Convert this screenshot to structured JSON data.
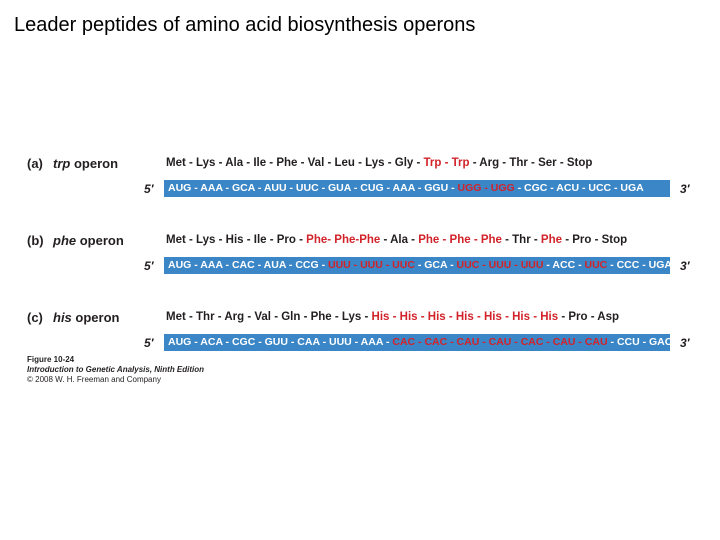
{
  "slide": {
    "title": "Leader peptides of amino acid biosynthesis operons"
  },
  "panels": [
    {
      "letter": "(a)",
      "gene": "trp",
      "label_suffix": " operon",
      "peptide": [
        "Met - Lys - Ala - Ile - Phe - Val - Leu - Lys - Gly - ",
        "Trp - Trp",
        " - Arg - Thr - Ser - Stop"
      ],
      "mrna": [
        "AUG - AAA - GCA - AUU - UUC - GUA - CUG - AAA - GGU - ",
        "UGG - UGG",
        " - CGC - ACU - UCC - UGA"
      ],
      "end5": "5′",
      "end3": "3′"
    },
    {
      "letter": "(b)",
      "gene": "phe",
      "label_suffix": " operon",
      "peptide": [
        "Met - Lys - His  - Ile - Pro - ",
        "Phe- Phe-Phe",
        " - Ala - ",
        "Phe - Phe - Phe",
        " - Thr - ",
        "Phe",
        " - Pro - Stop"
      ],
      "mrna": [
        "AUG - AAA - CAC - AUA - CCG - ",
        "UUU - UUU - UUC",
        " - GCA - ",
        "UUC - UUU - UUU",
        " - ACC - ",
        "UUC",
        " - CCC - UGA"
      ],
      "end5": "5′",
      "end3": "3′"
    },
    {
      "letter": "(c)",
      "gene": "his",
      "label_suffix": " operon",
      "peptide": [
        "Met - Thr - Arg - Val - Gln - Phe - Lys - ",
        "His - His - His - His - His - His - His",
        " - Pro - Asp"
      ],
      "mrna": [
        "AUG - ACA - CGC - GUU - CAA - UUU - AAA - ",
        "CAC - CAC - CAU - CAU - CAC - CAU - CAU",
        " - CCU - GAC"
      ],
      "end5": "5′",
      "end3": "3′"
    }
  ],
  "caption": {
    "line1": "Figure 10-24",
    "line2": "Introduction to Genetic Analysis, Ninth Edition",
    "line3": "© 2008 W. H. Freeman and Company"
  },
  "colors": {
    "mrna_bar": "#3b86c6",
    "highlight": "#d2232a",
    "text": "#231f20"
  }
}
